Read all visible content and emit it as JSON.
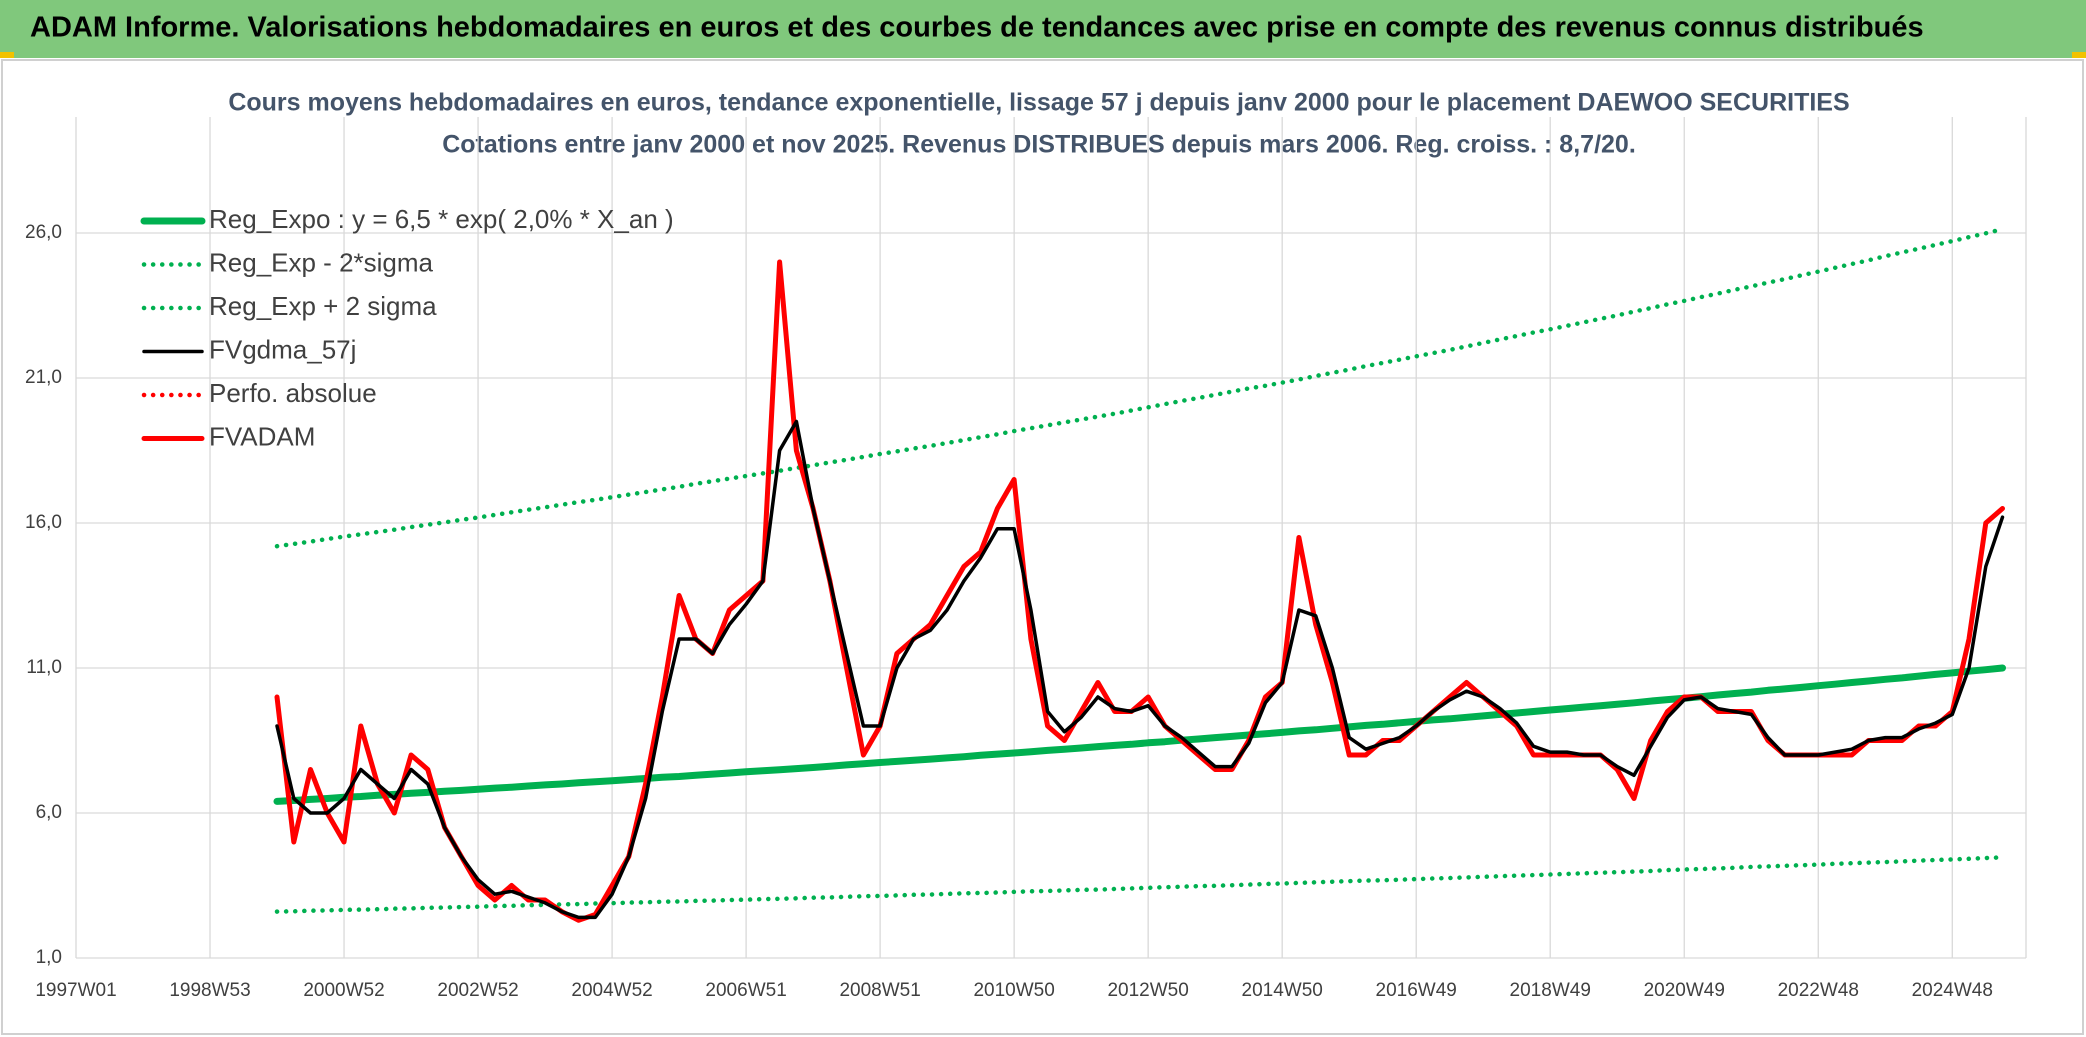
{
  "header": {
    "title": "ADAM Informe. Valorisations hebdomadaires en euros et des courbes de tendances avec prise en compte des revenus connus distribués"
  },
  "chart_data": {
    "type": "line",
    "title": "Cours moyens hebdomadaires en euros, tendance exponentielle, lissage 57 j depuis janv 2000 pour le placement DAEWOO SECURITIES",
    "subtitle": "Cotations entre janv 2000 et nov 2025. Revenus DISTRIBUES depuis mars 2006. Reg. croiss. : 8,7/20.",
    "categories": [
      "1997W01",
      null,
      null,
      null,
      null,
      null,
      null,
      null,
      "1998W53",
      null,
      null,
      null,
      null,
      null,
      null,
      null,
      "2000W52",
      null,
      null,
      null,
      null,
      null,
      null,
      null,
      "2002W52",
      null,
      null,
      null,
      null,
      null,
      null,
      null,
      "2004W52",
      null,
      null,
      null,
      null,
      null,
      null,
      null,
      "2006W51",
      null,
      null,
      null,
      null,
      null,
      null,
      null,
      "2008W51",
      null,
      null,
      null,
      null,
      null,
      null,
      null,
      "2010W50",
      null,
      null,
      null,
      null,
      null,
      null,
      null,
      "2012W50",
      null,
      null,
      null,
      null,
      null,
      null,
      null,
      "2014W50",
      null,
      null,
      null,
      null,
      null,
      null,
      null,
      "2016W49",
      null,
      null,
      null,
      null,
      null,
      null,
      null,
      "2018W49",
      null,
      null,
      null,
      null,
      null,
      null,
      null,
      "2020W49",
      null,
      null,
      null,
      null,
      null,
      null,
      null,
      "2022W48",
      null,
      null,
      null,
      null,
      null,
      null,
      null,
      "2024W48",
      null,
      null,
      null
    ],
    "ylim": [
      1,
      30
    ],
    "yticks": [
      {
        "value": 1,
        "label": "1,0"
      },
      {
        "value": 6,
        "label": "6,0"
      },
      {
        "value": 11,
        "label": "11,0"
      },
      {
        "value": 16,
        "label": "16,0"
      },
      {
        "value": 21,
        "label": "21,0"
      },
      {
        "value": 26,
        "label": "26,0"
      }
    ],
    "grid": true,
    "legend": "top-left",
    "series": [
      {
        "name": "Reg_Expo : y = 6,5 * exp( 2,0% *  X_an )",
        "color": "#00b050",
        "style": "solid",
        "values": [
          null,
          null,
          null,
          null,
          null,
          null,
          null,
          null,
          null,
          null,
          null,
          null,
          6.4,
          6.43,
          6.47,
          6.5,
          6.54,
          6.57,
          6.61,
          6.64,
          6.68,
          6.71,
          6.75,
          6.78,
          6.82,
          6.86,
          6.89,
          6.93,
          6.97,
          7.0,
          7.04,
          7.08,
          7.11,
          7.15,
          7.19,
          7.23,
          7.26,
          7.3,
          7.34,
          7.38,
          7.42,
          7.46,
          7.49,
          7.53,
          7.57,
          7.61,
          7.66,
          7.7,
          7.74,
          7.78,
          7.82,
          7.86,
          7.9,
          7.94,
          7.99,
          8.03,
          8.07,
          8.11,
          8.16,
          8.2,
          8.24,
          8.29,
          8.33,
          8.37,
          8.42,
          8.46,
          8.51,
          8.55,
          8.6,
          8.64,
          8.69,
          8.73,
          8.78,
          8.83,
          8.87,
          8.92,
          8.97,
          9.02,
          9.06,
          9.11,
          9.16,
          9.21,
          9.25,
          9.3,
          9.35,
          9.4,
          9.45,
          9.5,
          9.55,
          9.6,
          9.65,
          9.7,
          9.75,
          9.8,
          9.86,
          9.91,
          9.96,
          10.01,
          10.07,
          10.12,
          10.17,
          10.23,
          10.28,
          10.33,
          10.39,
          10.44,
          10.5,
          10.55,
          10.61,
          10.66,
          10.72,
          10.78,
          10.83,
          10.89,
          10.94,
          11.0
        ]
      },
      {
        "name": "Reg_Exp - 2*sigma",
        "color": "#00b050",
        "style": "dotted",
        "values": [
          null,
          null,
          null,
          null,
          null,
          null,
          null,
          null,
          null,
          null,
          null,
          null,
          2.6,
          2.61,
          2.63,
          2.64,
          2.66,
          2.67,
          2.68,
          2.7,
          2.71,
          2.73,
          2.74,
          2.76,
          2.77,
          2.79,
          2.8,
          2.82,
          2.83,
          2.85,
          2.86,
          2.88,
          2.89,
          2.91,
          2.92,
          2.94,
          2.95,
          2.97,
          2.98,
          3.0,
          3.01,
          3.03,
          3.04,
          3.06,
          3.08,
          3.09,
          3.11,
          3.13,
          3.14,
          3.16,
          3.18,
          3.19,
          3.21,
          3.23,
          3.24,
          3.26,
          3.28,
          3.3,
          3.31,
          3.33,
          3.35,
          3.36,
          3.38,
          3.4,
          3.42,
          3.44,
          3.46,
          3.48,
          3.49,
          3.51,
          3.53,
          3.55,
          3.57,
          3.59,
          3.61,
          3.63,
          3.65,
          3.67,
          3.68,
          3.7,
          3.72,
          3.74,
          3.76,
          3.78,
          3.8,
          3.82,
          3.84,
          3.86,
          3.88,
          3.9,
          3.92,
          3.94,
          3.96,
          3.98,
          4.0,
          4.03,
          4.05,
          4.07,
          4.09,
          4.11,
          4.14,
          4.16,
          4.18,
          4.2,
          4.22,
          4.25,
          4.27,
          4.29,
          4.31,
          4.33,
          4.36,
          4.38,
          4.4,
          4.42,
          4.45,
          4.47
        ]
      },
      {
        "name": "Reg_Exp + 2 sigma",
        "color": "#00b050",
        "style": "dotted",
        "values": [
          null,
          null,
          null,
          null,
          null,
          null,
          null,
          null,
          null,
          null,
          null,
          null,
          15.2,
          15.28,
          15.36,
          15.45,
          15.53,
          15.61,
          15.69,
          15.77,
          15.86,
          15.94,
          16.02,
          16.11,
          16.19,
          16.28,
          16.37,
          16.46,
          16.54,
          16.63,
          16.72,
          16.8,
          16.89,
          16.98,
          17.07,
          17.16,
          17.25,
          17.35,
          17.44,
          17.53,
          17.62,
          17.71,
          17.8,
          17.9,
          17.99,
          18.09,
          18.18,
          18.28,
          18.38,
          18.47,
          18.57,
          18.66,
          18.76,
          18.86,
          18.96,
          19.06,
          19.17,
          19.27,
          19.37,
          19.47,
          19.57,
          19.67,
          19.77,
          19.88,
          19.99,
          20.1,
          20.21,
          20.31,
          20.42,
          20.53,
          20.64,
          20.73,
          20.84,
          20.95,
          21.07,
          21.18,
          21.29,
          21.41,
          21.52,
          21.63,
          21.75,
          21.86,
          21.97,
          22.09,
          22.21,
          22.33,
          22.45,
          22.57,
          22.68,
          22.8,
          22.92,
          23.04,
          23.16,
          23.29,
          23.41,
          23.54,
          23.66,
          23.79,
          23.91,
          24.04,
          24.16,
          24.29,
          24.41,
          24.54,
          24.67,
          24.8,
          24.93,
          25.06,
          25.2,
          25.33,
          25.46,
          25.59,
          25.72,
          25.86,
          25.99,
          26.13
        ]
      },
      {
        "name": "FVgdma_57j",
        "color": "#000000",
        "style": "solid",
        "values": [
          null,
          null,
          null,
          null,
          null,
          null,
          null,
          null,
          null,
          null,
          null,
          null,
          9.0,
          6.5,
          6.0,
          6.0,
          6.5,
          7.5,
          7.0,
          6.5,
          7.5,
          7.0,
          5.5,
          4.5,
          3.7,
          3.2,
          3.3,
          3.1,
          2.9,
          2.6,
          2.4,
          2.4,
          3.2,
          4.5,
          6.5,
          9.5,
          12.0,
          12.0,
          11.5,
          12.5,
          13.2,
          14.0,
          18.5,
          19.5,
          16.5,
          14.0,
          11.5,
          9.0,
          9.0,
          11.0,
          12.0,
          12.3,
          13.0,
          14.0,
          14.8,
          15.8,
          15.8,
          13.0,
          9.5,
          8.8,
          9.3,
          10.0,
          9.6,
          9.5,
          9.7,
          9.0,
          8.6,
          8.1,
          7.6,
          7.6,
          8.4,
          9.8,
          10.5,
          13.0,
          12.8,
          11.0,
          8.6,
          8.2,
          8.4,
          8.6,
          9.0,
          9.5,
          9.9,
          10.2,
          10.0,
          9.6,
          9.1,
          8.3,
          8.1,
          8.1,
          8.0,
          8.0,
          7.6,
          7.3,
          8.3,
          9.3,
          9.9,
          10.0,
          9.6,
          9.5,
          9.4,
          8.6,
          8.0,
          8.0,
          8.0,
          8.1,
          8.2,
          8.5,
          8.6,
          8.6,
          8.9,
          9.1,
          9.4,
          11.0,
          14.5,
          16.2
        ]
      },
      {
        "name": "Perfo. absolue",
        "color": "#ff0000",
        "style": "dotted",
        "values": [
          null,
          null,
          null,
          null,
          null,
          null,
          null,
          null,
          null,
          null,
          null,
          null,
          null,
          null,
          null,
          null,
          null,
          null,
          null,
          null,
          null,
          null,
          null,
          null,
          null,
          null,
          null,
          null,
          null,
          null,
          null,
          null,
          null,
          null,
          null,
          null,
          null,
          null,
          null,
          null,
          null,
          null,
          null,
          null,
          null,
          null,
          null,
          null,
          null,
          null,
          null,
          null,
          null,
          null,
          null,
          null,
          null,
          null,
          null,
          null,
          null,
          null,
          null,
          null,
          null,
          null,
          null,
          null,
          null,
          null,
          null,
          null,
          null,
          null,
          null,
          null,
          null,
          null,
          null,
          null,
          null,
          null,
          null,
          null,
          null,
          null,
          null,
          null,
          null,
          null,
          null,
          null,
          null,
          null,
          null,
          null,
          null,
          null,
          null,
          null,
          null,
          null,
          null,
          null,
          null,
          null,
          null,
          null,
          null,
          null,
          null,
          null,
          null,
          null,
          null,
          null
        ]
      },
      {
        "name": "FVADAM",
        "color": "#ff0000",
        "style": "solid",
        "values": [
          null,
          null,
          null,
          null,
          null,
          null,
          null,
          null,
          null,
          null,
          null,
          null,
          10.0,
          5.0,
          7.5,
          6.0,
          5.0,
          9.0,
          7.0,
          6.0,
          8.0,
          7.5,
          5.5,
          4.5,
          3.5,
          3.0,
          3.5,
          3.0,
          3.0,
          2.6,
          2.3,
          2.5,
          3.5,
          4.5,
          7.0,
          10.0,
          13.5,
          12.0,
          11.5,
          13.0,
          13.5,
          14.0,
          25.0,
          18.5,
          16.5,
          14.0,
          11.0,
          8.0,
          9.0,
          11.5,
          12.0,
          12.5,
          13.5,
          14.5,
          15.0,
          16.5,
          17.5,
          12.0,
          9.0,
          8.5,
          9.5,
          10.5,
          9.5,
          9.5,
          10.0,
          9.0,
          8.5,
          8.0,
          7.5,
          7.5,
          8.5,
          10.0,
          10.5,
          15.5,
          12.5,
          10.5,
          8.0,
          8.0,
          8.5,
          8.5,
          9.0,
          9.5,
          10.0,
          10.5,
          10.0,
          9.5,
          9.0,
          8.0,
          8.0,
          8.0,
          8.0,
          8.0,
          7.5,
          6.5,
          8.5,
          9.5,
          10.0,
          10.0,
          9.5,
          9.5,
          9.5,
          8.5,
          8.0,
          8.0,
          8.0,
          8.0,
          8.0,
          8.5,
          8.5,
          8.5,
          9.0,
          9.0,
          9.5,
          12.0,
          16.0,
          16.5
        ]
      }
    ]
  }
}
